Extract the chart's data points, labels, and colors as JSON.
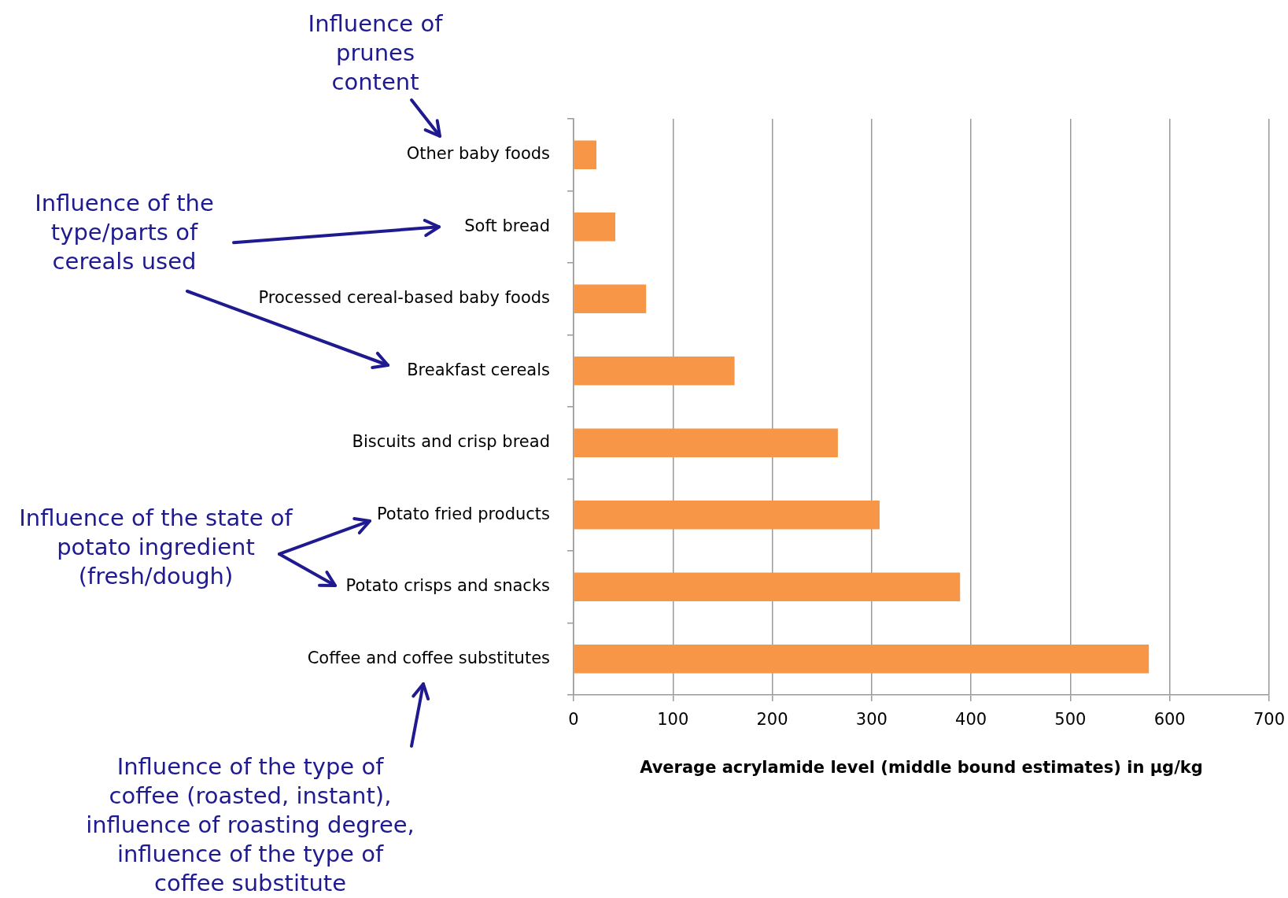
{
  "chart_data": {
    "type": "bar",
    "orientation": "horizontal",
    "categories": [
      "Other baby foods",
      "Soft bread",
      "Processed cereal-based baby foods",
      "Breakfast cereals",
      "Biscuits and crisp bread",
      "Potato fried products",
      "Potato crisps and snacks",
      "Coffee and coffee substitutes"
    ],
    "values": [
      23,
      42,
      73,
      162,
      266,
      308,
      389,
      579
    ],
    "color": "#f79646",
    "xlabel": "Average acrylamide level (middle bound estimates) in µg/kg",
    "xlim": [
      0,
      700
    ],
    "xticks": [
      0,
      100,
      200,
      300,
      400,
      500,
      600,
      700
    ],
    "grid": "x",
    "legend": false,
    "annotations": [
      "Influence of prunes content",
      "Influence of the type/parts of cereals used",
      "Influence of the state of potato ingredient (fresh/dough)",
      "Influence of the type of coffee (roasted, instant), influence of roasting degree, influence of the type of coffee substitute"
    ]
  }
}
